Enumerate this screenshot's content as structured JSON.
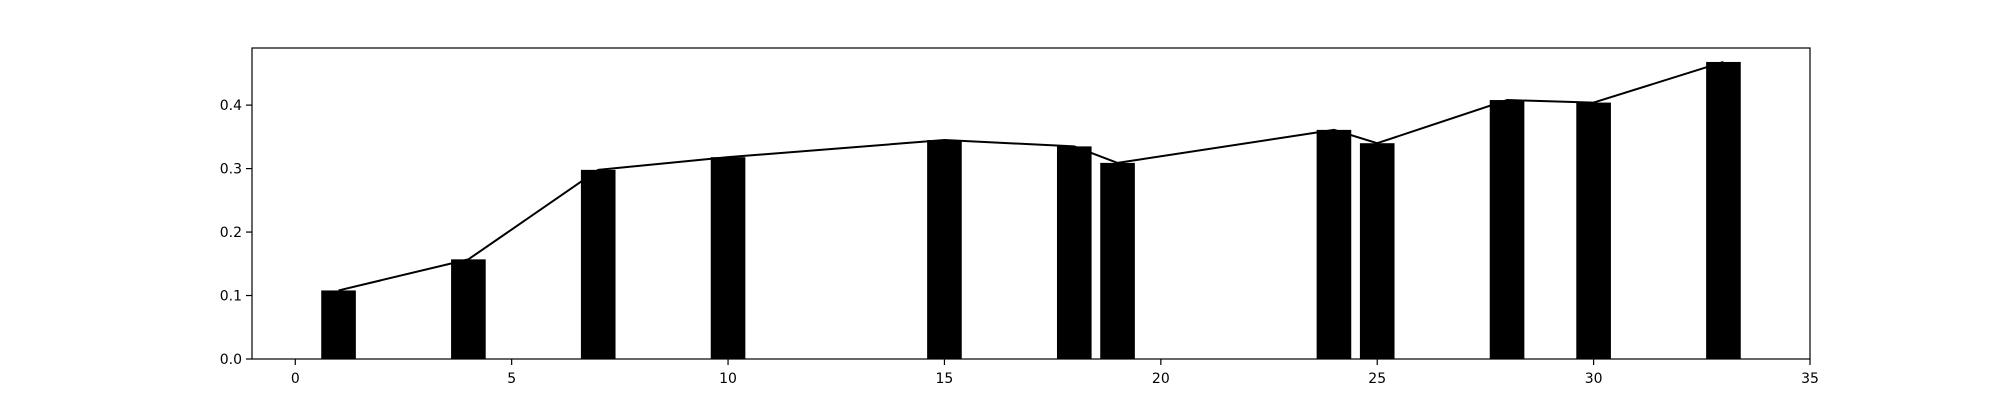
{
  "chart_data": {
    "type": "bar",
    "title": "",
    "xlabel": "",
    "ylabel": "",
    "xlim": [
      -1,
      35
    ],
    "ylim": [
      0,
      0.49
    ],
    "grid": false,
    "legend": "none",
    "bar_color": "#000000",
    "line_color": "#000000",
    "x_ticks": [
      0,
      5,
      10,
      15,
      20,
      25,
      30,
      35
    ],
    "x_tick_labels": [
      "0",
      "5",
      "10",
      "15",
      "20",
      "25",
      "30",
      "35"
    ],
    "y_ticks": [
      0.0,
      0.1,
      0.2,
      0.3,
      0.4
    ],
    "y_tick_labels": [
      "0.0",
      "0.1",
      "0.2",
      "0.3",
      "0.4"
    ],
    "bar_width": 0.8,
    "x": [
      1,
      4,
      7,
      10,
      15,
      18,
      19,
      24,
      25,
      28,
      30,
      33
    ],
    "values": [
      0.108,
      0.157,
      0.298,
      0.318,
      0.345,
      0.335,
      0.309,
      0.361,
      0.34,
      0.408,
      0.404,
      0.468
    ]
  }
}
